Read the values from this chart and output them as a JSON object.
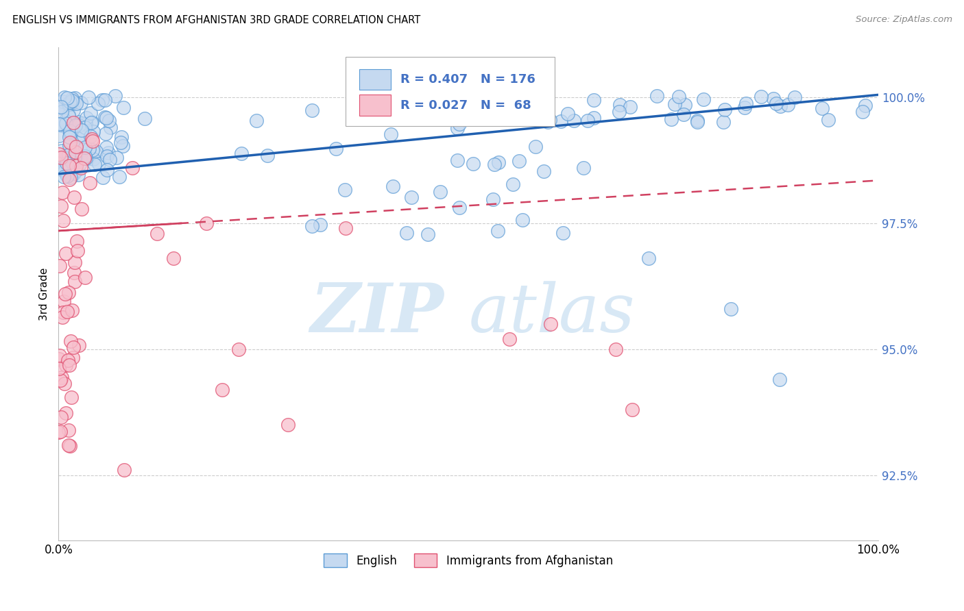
{
  "title": "ENGLISH VS IMMIGRANTS FROM AFGHANISTAN 3RD GRADE CORRELATION CHART",
  "source": "Source: ZipAtlas.com",
  "ylabel": "3rd Grade",
  "ytick_values": [
    92.5,
    95.0,
    97.5,
    100.0
  ],
  "xlim": [
    0.0,
    100.0
  ],
  "ylim": [
    91.2,
    101.0
  ],
  "legend_english": "English",
  "legend_afghan": "Immigrants from Afghanistan",
  "R_english": 0.407,
  "N_english": 176,
  "R_afghan": 0.027,
  "N_afghan": 68,
  "watermark_zip": "ZIP",
  "watermark_atlas": "atlas",
  "bg_color": "#ffffff",
  "english_color": "#c5d9f0",
  "english_edge_color": "#5b9bd5",
  "afghan_color": "#f7c0cd",
  "afghan_edge_color": "#e05070",
  "english_line_color": "#2060b0",
  "afghan_line_color": "#d04060",
  "grid_color": "#cccccc",
  "right_axis_color": "#4472c4",
  "eng_line_x0": 0.0,
  "eng_line_x1": 100.0,
  "eng_line_y0": 98.48,
  "eng_line_y1": 100.05,
  "afg_line_x0": 0.0,
  "afg_line_x1": 100.0,
  "afg_line_y0": 97.35,
  "afg_line_y1": 98.35
}
